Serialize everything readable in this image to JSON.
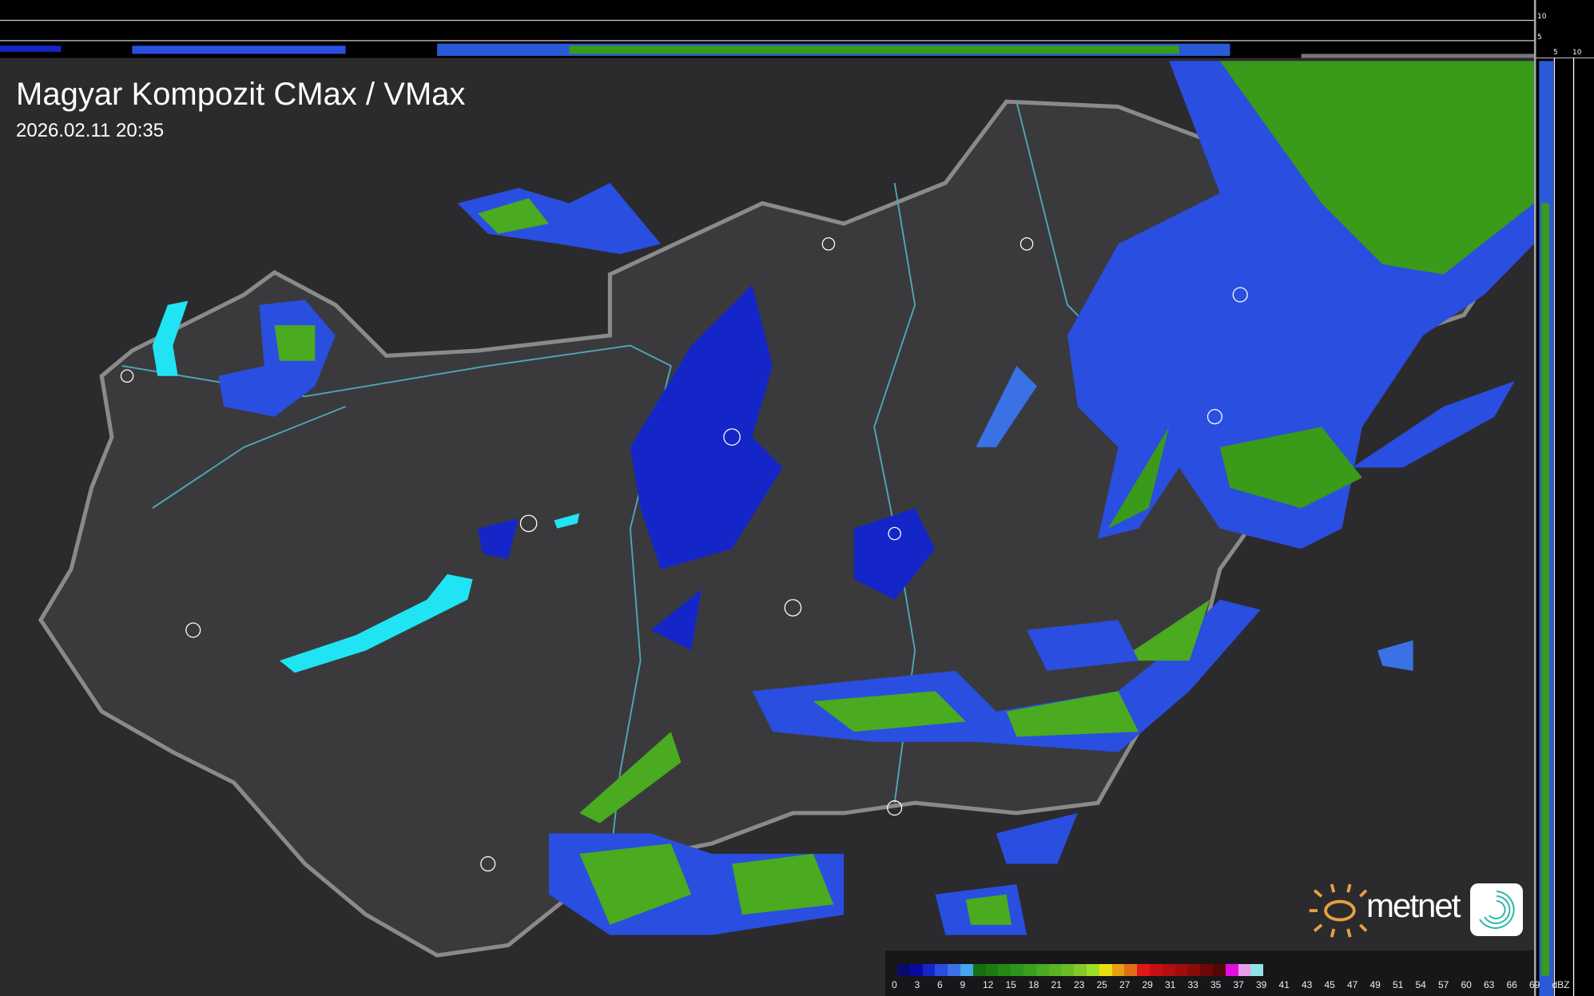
{
  "header": {
    "title": "Magyar Kompozit CMax / VMax",
    "timestamp": "2026.02.11 20:35"
  },
  "cross_section_scale": {
    "vertical_ticks": [
      "10",
      "5"
    ],
    "horizontal_ticks": [
      "5",
      "10"
    ]
  },
  "legend": {
    "unit": "dBZ",
    "labels": [
      "0",
      "3",
      "6",
      "9",
      "12",
      "15",
      "18",
      "21",
      "23",
      "25",
      "27",
      "29",
      "31",
      "33",
      "35",
      "37",
      "39",
      "41",
      "43",
      "45",
      "47",
      "49",
      "51",
      "54",
      "57",
      "60",
      "63",
      "66",
      "69"
    ],
    "colors": [
      "#0a0a6e",
      "#0a0aa0",
      "#1426c8",
      "#2a4ee0",
      "#3a72e6",
      "#48a6ea",
      "#157010",
      "#1c7c12",
      "#248a16",
      "#2c961a",
      "#3aa01e",
      "#4aaa20",
      "#5ab422",
      "#6abe24",
      "#86c826",
      "#9ee028",
      "#e8e010",
      "#e8a010",
      "#e07018",
      "#e01818",
      "#c81010",
      "#b40e0e",
      "#a00c0c",
      "#8a0a0a",
      "#6e0808",
      "#500808",
      "#e010e0",
      "#e8a0e8",
      "#90e4e8"
    ]
  },
  "logos": {
    "brand": "metnet"
  },
  "colors": {
    "background": "#2b2b2e",
    "country_fill": "#3a3a3d",
    "border": "#8a8a8a",
    "river": "#4fa6b8",
    "lake": "#20e4f4"
  }
}
